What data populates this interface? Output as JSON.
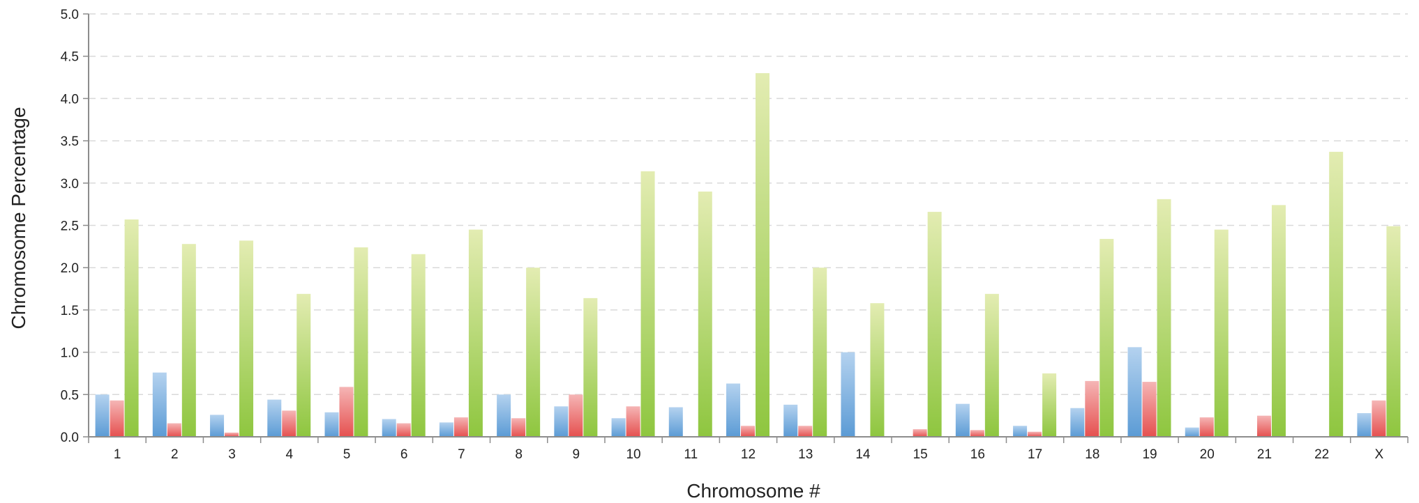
{
  "chart_data": {
    "type": "bar",
    "title": "",
    "xlabel": "Chromosome #",
    "ylabel": "Chromosome Percentage",
    "ylim": [
      0,
      5.0
    ],
    "yticks": [
      "0.0",
      "0.5",
      "1.0",
      "1.5",
      "2.0",
      "2.5",
      "3.0",
      "3.5",
      "4.0",
      "4.5",
      "5.0"
    ],
    "grid": true,
    "legend": "none",
    "categories": [
      "1",
      "2",
      "3",
      "4",
      "5",
      "6",
      "7",
      "8",
      "9",
      "10",
      "11",
      "12",
      "13",
      "14",
      "15",
      "16",
      "17",
      "18",
      "19",
      "20",
      "21",
      "22",
      "X"
    ],
    "series": [
      {
        "color": "#5b9bd5",
        "light": "#b4d2ef",
        "values": [
          0.5,
          0.76,
          0.26,
          0.44,
          0.29,
          0.21,
          0.17,
          0.5,
          0.36,
          0.22,
          0.35,
          0.63,
          0.38,
          1.0,
          0.0,
          0.39,
          0.13,
          0.34,
          1.06,
          0.11,
          0.0,
          0.0,
          0.28
        ]
      },
      {
        "color": "#e5504f",
        "light": "#f5b5b5",
        "values": [
          0.43,
          0.16,
          0.05,
          0.31,
          0.59,
          0.16,
          0.23,
          0.22,
          0.5,
          0.36,
          0.0,
          0.13,
          0.13,
          0.0,
          0.09,
          0.08,
          0.06,
          0.66,
          0.65,
          0.23,
          0.25,
          0.0,
          0.43
        ]
      },
      {
        "color": "#8ec63f",
        "light": "#e3ecb2",
        "values": [
          2.57,
          2.28,
          2.32,
          1.69,
          2.24,
          2.16,
          2.45,
          2.0,
          1.64,
          3.14,
          2.9,
          4.3,
          2.0,
          1.58,
          2.66,
          1.69,
          0.75,
          2.34,
          2.81,
          2.45,
          2.74,
          3.37,
          2.49
        ]
      }
    ]
  }
}
